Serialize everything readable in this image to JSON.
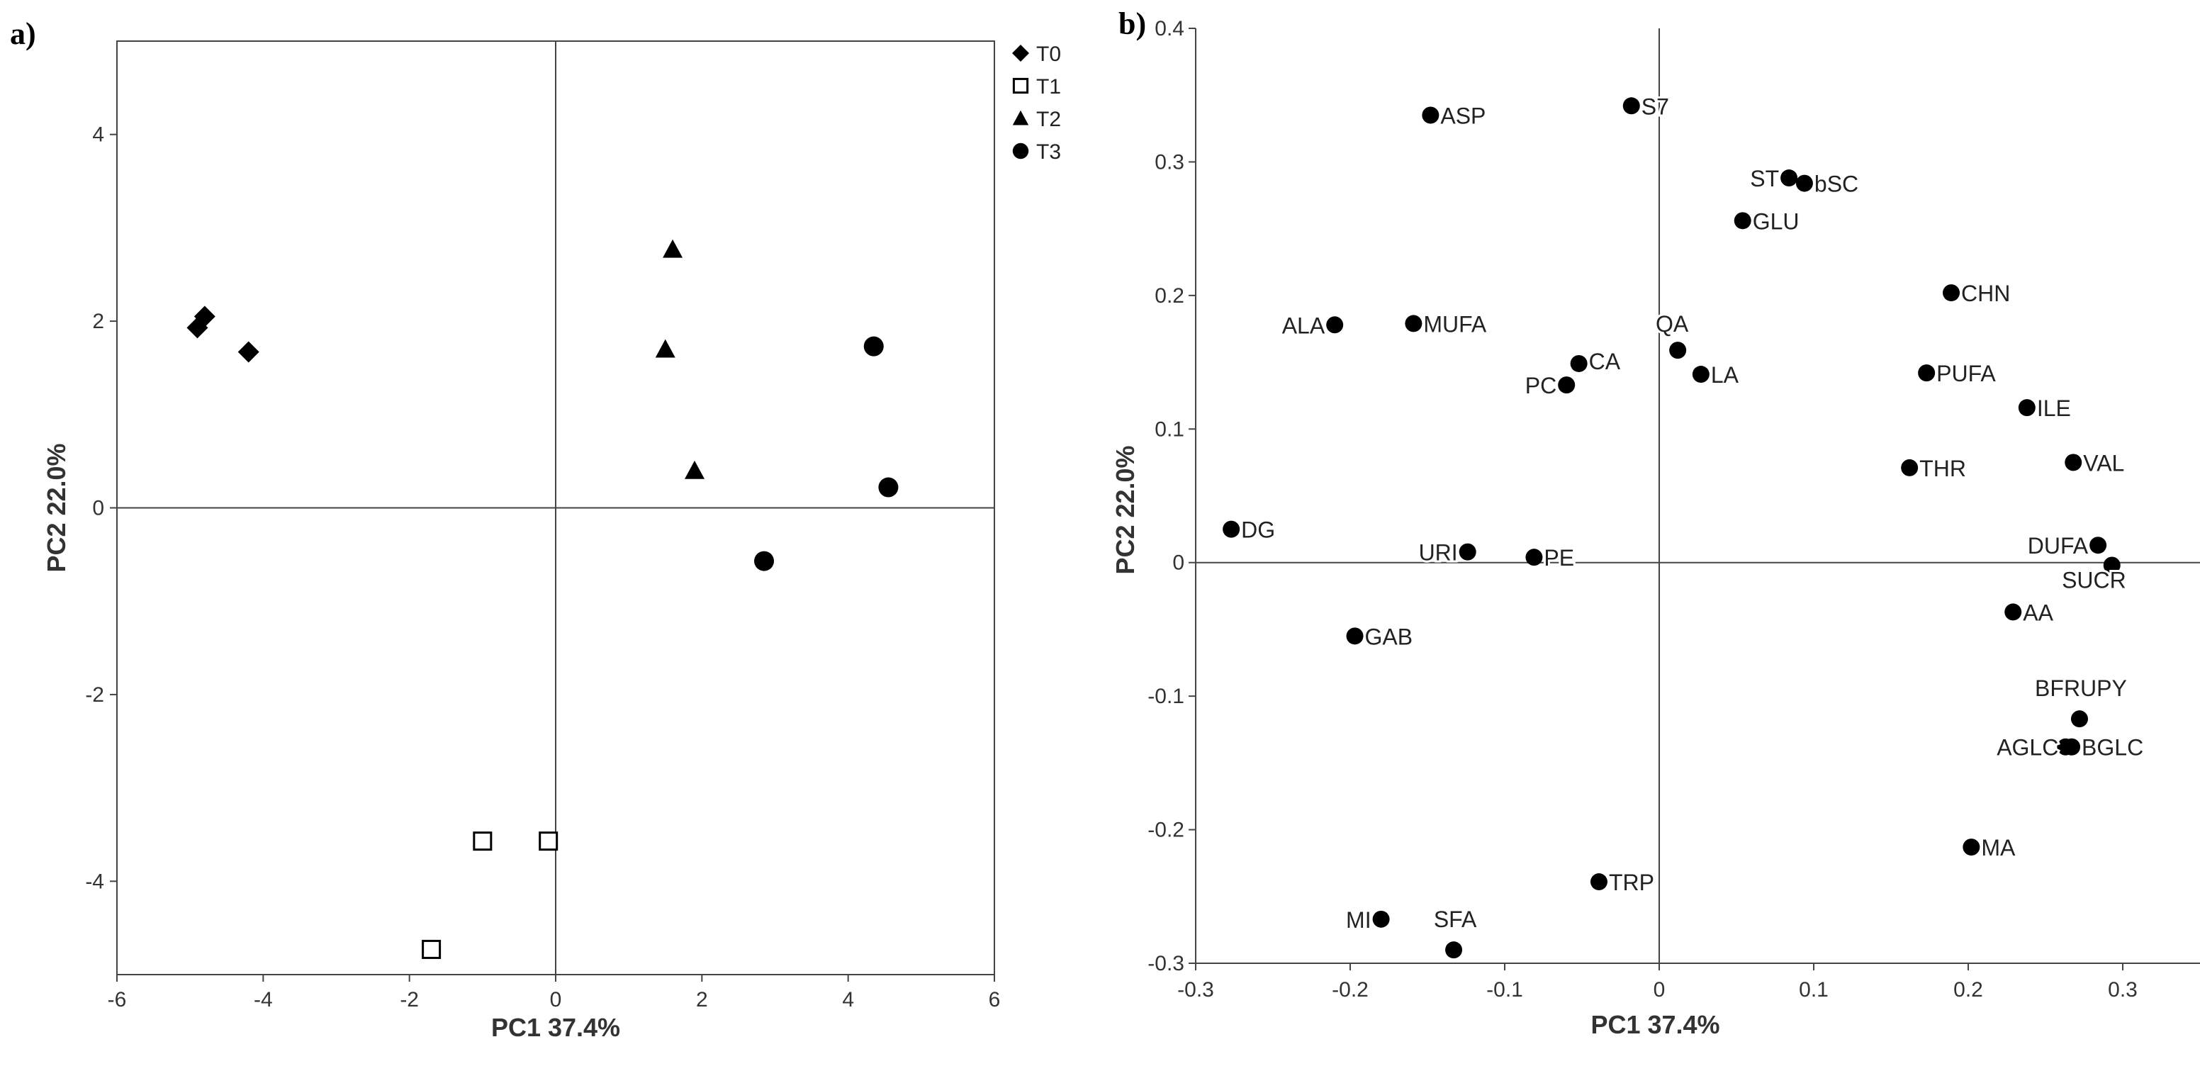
{
  "panels": {
    "a_label": "a)",
    "b_label": "b)"
  },
  "chart_data": [
    {
      "type": "scatter",
      "title": "",
      "xlabel": "PC1 37.4%",
      "ylabel": "PC2 22.0%",
      "xlim": [
        -6,
        6
      ],
      "ylim": [
        -5,
        5
      ],
      "xticks": [
        -6,
        -4,
        -2,
        0,
        2,
        4,
        6
      ],
      "yticks": [
        -4,
        -2,
        0,
        2,
        4
      ],
      "xtick_labels": [
        "-6",
        "-4",
        "-2",
        "0",
        "2",
        "4",
        "6"
      ],
      "ytick_labels": [
        "-4",
        "-2",
        "0",
        "2",
        "4"
      ],
      "legend_position": "top-right outside",
      "series": [
        {
          "name": "T0",
          "marker": "diamond",
          "points": [
            [
              -4.8,
              2.05
            ],
            [
              -4.9,
              1.93
            ],
            [
              -4.2,
              1.67
            ]
          ]
        },
        {
          "name": "T1",
          "marker": "open-square",
          "points": [
            [
              -1.0,
              -3.57
            ],
            [
              -0.1,
              -3.57
            ],
            [
              -1.7,
              -4.73
            ]
          ]
        },
        {
          "name": "T2",
          "marker": "triangle",
          "points": [
            [
              1.6,
              2.77
            ],
            [
              1.5,
              1.7
            ],
            [
              1.9,
              0.4
            ]
          ]
        },
        {
          "name": "T3",
          "marker": "circle",
          "points": [
            [
              4.35,
              1.73
            ],
            [
              4.55,
              0.22
            ],
            [
              2.85,
              -0.57
            ]
          ]
        }
      ]
    },
    {
      "type": "scatter",
      "title": "",
      "xlabel": "PC1 37.4%",
      "ylabel": "PC2 22.0%",
      "xlim": [
        -0.3,
        0.35
      ],
      "ylim": [
        -0.3,
        0.4
      ],
      "xticks": [
        -0.3,
        -0.2,
        -0.1,
        0,
        0.1,
        0.2,
        0.3
      ],
      "yticks": [
        -0.3,
        -0.2,
        -0.1,
        0,
        0.1,
        0.2,
        0.3,
        0.4
      ],
      "xtick_labels": [
        "-0.3",
        "-0.2",
        "-0.1",
        "0",
        "0.1",
        "0.2",
        "0.3"
      ],
      "ytick_labels": [
        "-0.3",
        "-0.2",
        "-0.1",
        "0",
        "0.1",
        "0.2",
        "0.3",
        "0.4"
      ],
      "points": [
        {
          "label": "ASP",
          "x": -0.148,
          "y": 0.335
        },
        {
          "label": "S7",
          "x": -0.018,
          "y": 0.342
        },
        {
          "label": "ST",
          "x": 0.084,
          "y": 0.288
        },
        {
          "label": "bSC",
          "x": 0.094,
          "y": 0.284
        },
        {
          "label": "GLU",
          "x": 0.054,
          "y": 0.256
        },
        {
          "label": "CHN",
          "x": 0.189,
          "y": 0.202
        },
        {
          "label": "ALA",
          "x": -0.21,
          "y": 0.178
        },
        {
          "label": "MUFA",
          "x": -0.159,
          "y": 0.179
        },
        {
          "label": "QA",
          "x": 0.012,
          "y": 0.159
        },
        {
          "label": "CA",
          "x": -0.052,
          "y": 0.149
        },
        {
          "label": "PC",
          "x": -0.06,
          "y": 0.133
        },
        {
          "label": "LA",
          "x": 0.027,
          "y": 0.141
        },
        {
          "label": "PUFA",
          "x": 0.173,
          "y": 0.142
        },
        {
          "label": "ILE",
          "x": 0.238,
          "y": 0.116
        },
        {
          "label": "THR",
          "x": 0.162,
          "y": 0.071
        },
        {
          "label": "VAL",
          "x": 0.268,
          "y": 0.075
        },
        {
          "label": "DG",
          "x": -0.277,
          "y": 0.025
        },
        {
          "label": "URI",
          "x": -0.124,
          "y": 0.008
        },
        {
          "label": "PE",
          "x": -0.081,
          "y": 0.004
        },
        {
          "label": "DUFA",
          "x": 0.284,
          "y": 0.013
        },
        {
          "label": "SUCR",
          "x": 0.293,
          "y": -0.002
        },
        {
          "label": "AA",
          "x": 0.229,
          "y": -0.037
        },
        {
          "label": "GAB",
          "x": -0.197,
          "y": -0.055
        },
        {
          "label": "BFRUPY",
          "x": 0.272,
          "y": -0.117
        },
        {
          "label": "AGLC",
          "x": 0.263,
          "y": -0.138
        },
        {
          "label": "BGLC",
          "x": 0.267,
          "y": -0.138
        },
        {
          "label": "MA",
          "x": 0.202,
          "y": -0.213
        },
        {
          "label": "TRP",
          "x": -0.039,
          "y": -0.239
        },
        {
          "label": "MI",
          "x": -0.18,
          "y": -0.267
        },
        {
          "label": "SFA",
          "x": -0.133,
          "y": -0.29
        }
      ]
    }
  ]
}
